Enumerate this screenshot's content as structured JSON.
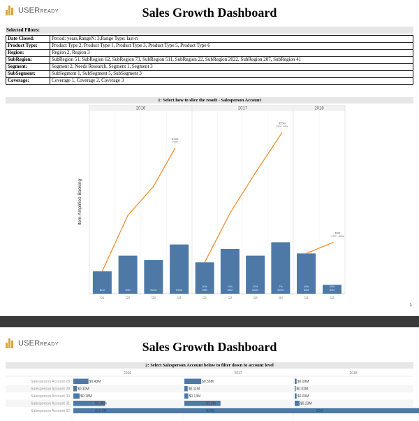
{
  "logo": {
    "name_main": "USER",
    "name_small": "READY"
  },
  "page1": {
    "title": "Sales Growth Dashboard",
    "filters_header": "Selected Filters:",
    "filters": [
      {
        "key": "Date Closed:",
        "value": "Period: years,RangeN: 3,Range Type: last-n"
      },
      {
        "key": "Product Type:",
        "value": "Product Type 2, Product Type 1, Product Type 3, Product Type 5, Product Type 6"
      },
      {
        "key": "Region:",
        "value": "Region 2, Region 3"
      },
      {
        "key": "SubRegion:",
        "value": "SubRegion 51, SubRegion 62, SubRegion 73, SubRegion 511, SubRegion 22, SubRegion 2022, SubRegion 207, SubRegion 41"
      },
      {
        "key": "Segment:",
        "value": "Segment 2, Needs Research, Segment 1, Segment 3"
      },
      {
        "key": "SubSegment:",
        "value": "SubSegment 1, SubSegment 5, SubSegment 3"
      },
      {
        "key": "Coverage:",
        "value": "Coverage 1, Coverage 2, Coverage 3"
      }
    ],
    "section_title": "1: Select how to slice the result - Salesperson Account",
    "page_number": "1"
  },
  "page2": {
    "title": "Sales Growth Dashboard",
    "section_title": "2: Select Salesperson Account below to filter down to account level"
  },
  "colors": {
    "bar": "#4e79a7",
    "line": "#f28e2b",
    "header_bg": "#e6e6e6",
    "logo": "#e0a23a"
  },
  "chart_data": [
    {
      "type": "bar",
      "ylabel": "Item Amplified Booking",
      "years": [
        "2016",
        "2017",
        "2018"
      ],
      "quarters": [
        "Q1",
        "Q2",
        "Q3",
        "Q4",
        "Q1",
        "Q2",
        "Q3",
        "Q4",
        "Q1",
        "Q2"
      ],
      "year_of_quarter": [
        0,
        0,
        0,
        0,
        1,
        1,
        1,
        1,
        2,
        2
      ],
      "series": [
        {
          "name": "",
          "values": [
            1.0,
            1.7,
            1.5,
            2.2,
            1.4,
            2.0,
            1.7,
            2.3,
            1.8,
            0.4
          ]
        }
      ],
      "bar_labels": [
        "$1M",
        "$0M",
        "$12M",
        "$10M",
        "30%\n$8M",
        "10%\n$9M",
        "10%\n$10M",
        "7%\n$20M",
        "40%\n$3M",
        "30%\n$3M"
      ],
      "line_series": [
        {
          "year": 0,
          "start_bar": 0,
          "end_value": 6.5
        },
        {
          "year": 1,
          "start_bar": 4,
          "end_value": 7.2
        },
        {
          "year": 2,
          "start_bar": 8,
          "end_value": 2.3
        }
      ],
      "annotations": [
        {
          "year": "2016",
          "lines": [
            "$10M",
            "YOY:"
          ]
        },
        {
          "year": "2017",
          "lines": [
            "$25M",
            "YOY: 10%"
          ]
        },
        {
          "year": "2018",
          "lines": [
            "$6M",
            "YOY: -40%"
          ]
        }
      ]
    },
    {
      "type": "bar",
      "years": [
        "2016",
        "2017",
        "2018"
      ],
      "rows": [
        {
          "label": "Salesperson Account 28",
          "values": [
            0.43,
            0.56,
            0.09
          ],
          "labels": [
            "$0.43M",
            "$0.56M",
            "$0.09M"
          ]
        },
        {
          "label": "Salesperson Account 29",
          "values": [
            0.1,
            0.11,
            0.02
          ],
          "labels": [
            "$0.10M",
            "$0.11M",
            "$0.02M"
          ]
        },
        {
          "label": "Salesperson Account 30",
          "values": [
            0.18,
            0.13,
            0.09
          ],
          "labels": [
            "$0.18M",
            "$0.13M",
            "$0.09M"
          ]
        },
        {
          "label": "Salesperson Account 31",
          "values": [
            0.9,
            1.2,
            0.23
          ],
          "labels": [
            "$0.90M",
            "$1.2M",
            "$0.23M"
          ]
        },
        {
          "label": "Salesperson Account 32",
          "values": [
            12.0,
            14.0,
            3.0
          ],
          "labels": [
            "$12.0M",
            "$14M",
            "$3M"
          ]
        }
      ]
    }
  ]
}
